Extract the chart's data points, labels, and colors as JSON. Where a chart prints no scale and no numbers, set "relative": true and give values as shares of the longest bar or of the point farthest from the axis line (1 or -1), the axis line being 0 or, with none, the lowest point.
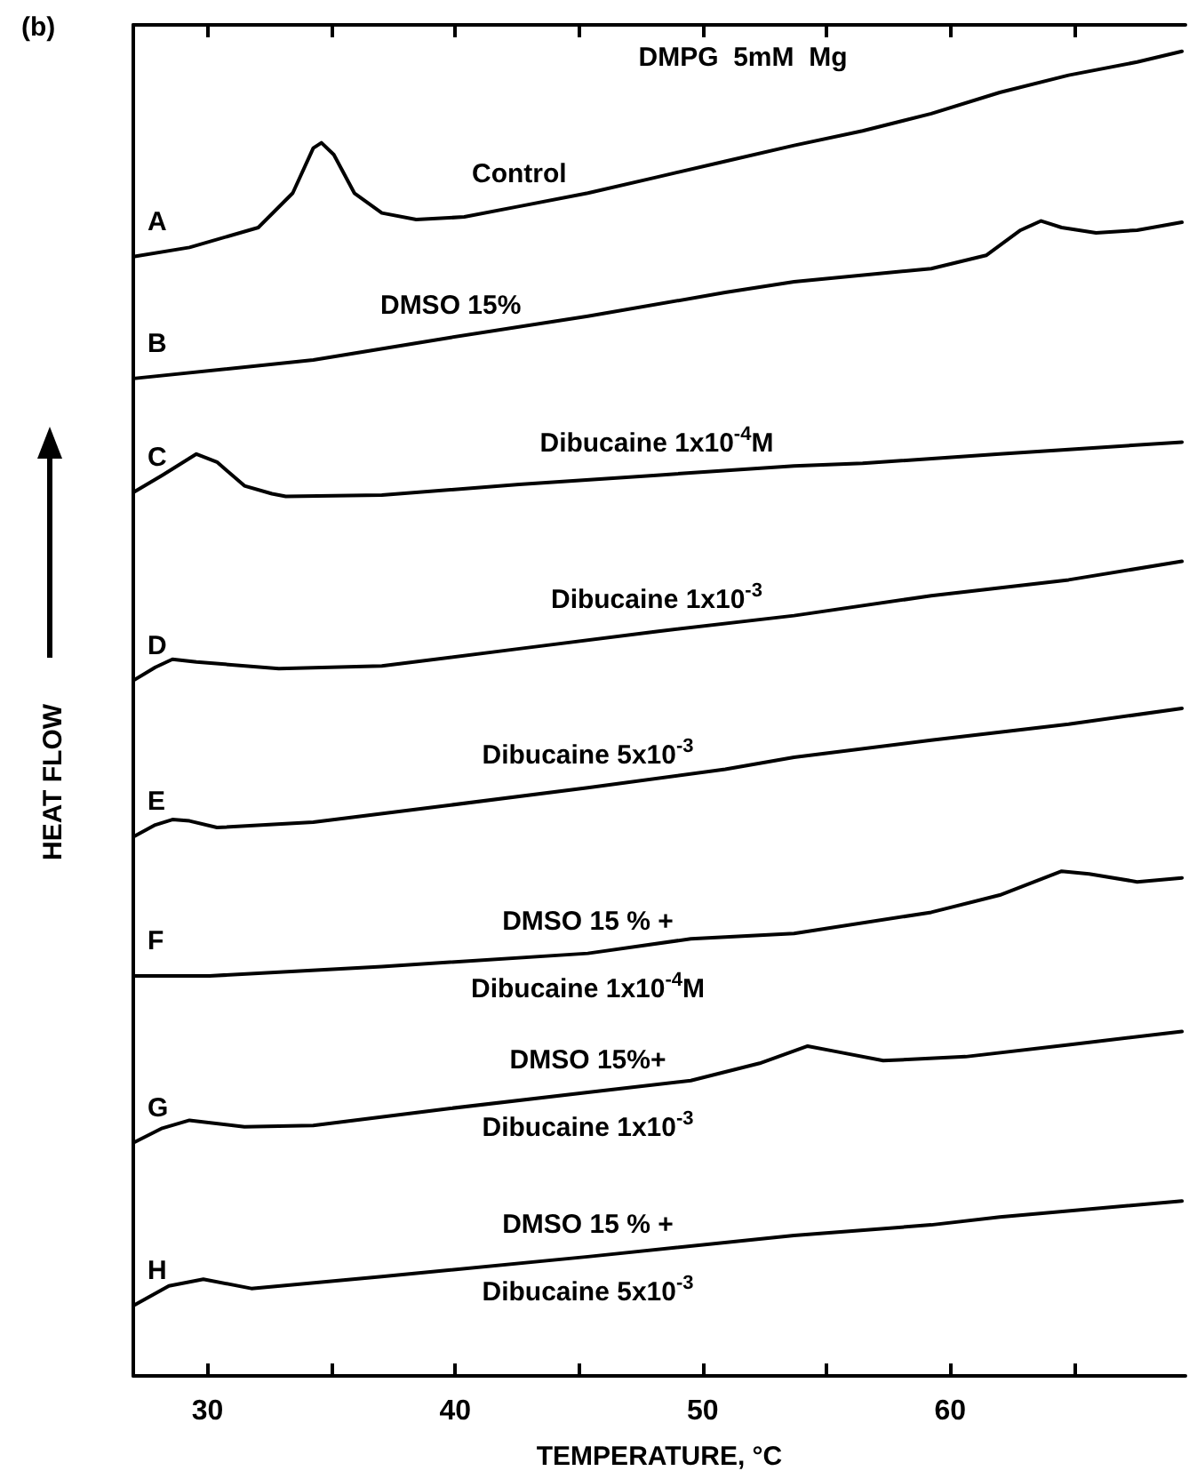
{
  "chart_data": {
    "type": "line",
    "relative": true,
    "title": "DMPG  5mM  Mg",
    "xlabel": "TEMPERATURE, °C",
    "ylabel": "HEAT FLOW",
    "xlim": [
      27,
      69.5
    ],
    "xticks": [
      30,
      {
        "value": 35,
        "label": null
      },
      40,
      {
        "value": 45,
        "label": null
      },
      50,
      {
        "value": 55,
        "label": null
      },
      60,
      {
        "value": 65,
        "label": null
      }
    ],
    "marker": "none",
    "line_style": "solid",
    "grid": false,
    "series": [
      {
        "name": "A",
        "color": "#000000",
        "x": [
          27,
          29.27,
          32.05,
          33.44,
          34.27,
          34.6,
          35.1,
          35.93,
          37.04,
          38.43,
          40.37,
          42.59,
          45.36,
          48.14,
          50.91,
          53.69,
          56.46,
          59.23,
          62.0,
          64.78,
          67.55,
          69.36
        ],
        "values": [
          0.845,
          0.852,
          0.867,
          0.893,
          0.927,
          0.931,
          0.922,
          0.893,
          0.878,
          0.873,
          0.875,
          0.883,
          0.893,
          0.905,
          0.917,
          0.929,
          0.94,
          0.953,
          0.969,
          0.982,
          0.992,
          1.0
        ]
      },
      {
        "name": "B",
        "color": "#000000",
        "x": [
          27,
          34.27,
          39.82,
          45.36,
          50.91,
          53.69,
          59.23,
          61.45,
          62.84,
          63.67,
          64.5,
          65.89,
          67.55,
          69.36
        ],
        "values": [
          0.753,
          0.767,
          0.784,
          0.8,
          0.818,
          0.826,
          0.836,
          0.846,
          0.865,
          0.872,
          0.867,
          0.863,
          0.865,
          0.871
        ]
      },
      {
        "name": "C",
        "color": "#000000",
        "x": [
          27,
          28.17,
          29.55,
          30.38,
          31.49,
          32.6,
          33.16,
          37.04,
          42.59,
          48.14,
          53.69,
          56.46,
          62.0,
          69.36
        ],
        "values": [
          0.667,
          0.68,
          0.696,
          0.69,
          0.672,
          0.666,
          0.664,
          0.665,
          0.673,
          0.68,
          0.687,
          0.689,
          0.696,
          0.705
        ]
      },
      {
        "name": "D",
        "color": "#000000",
        "x": [
          27,
          27.89,
          28.58,
          29.55,
          32.88,
          37.04,
          42.59,
          48.14,
          53.69,
          59.23,
          64.78,
          69.36
        ],
        "values": [
          0.525,
          0.535,
          0.541,
          0.539,
          0.534,
          0.536,
          0.549,
          0.562,
          0.574,
          0.589,
          0.601,
          0.615
        ]
      },
      {
        "name": "E",
        "color": "#000000",
        "x": [
          27,
          27.89,
          28.58,
          29.27,
          30.38,
          34.27,
          39.82,
          45.36,
          50.91,
          53.69,
          59.23,
          64.78,
          69.36
        ],
        "values": [
          0.407,
          0.416,
          0.42,
          0.419,
          0.414,
          0.418,
          0.431,
          0.444,
          0.458,
          0.467,
          0.48,
          0.492,
          0.504
        ]
      },
      {
        "name": "F",
        "color": "#000000",
        "x": [
          27,
          30.08,
          37.04,
          45.36,
          49.52,
          53.69,
          59.23,
          62.0,
          64.5,
          65.61,
          67.55,
          69.36
        ],
        "values": [
          0.302,
          0.302,
          0.309,
          0.319,
          0.33,
          0.334,
          0.35,
          0.363,
          0.381,
          0.379,
          0.373,
          0.376
        ]
      },
      {
        "name": "G",
        "color": "#000000",
        "x": [
          27,
          28.17,
          29.27,
          31.49,
          34.27,
          39.82,
          45.36,
          49.52,
          52.3,
          54.24,
          55.35,
          57.29,
          60.62,
          64.78,
          69.36
        ],
        "values": [
          0.176,
          0.187,
          0.193,
          0.188,
          0.189,
          0.202,
          0.214,
          0.223,
          0.236,
          0.249,
          0.245,
          0.238,
          0.241,
          0.25,
          0.26
        ]
      },
      {
        "name": "H",
        "color": "#000000",
        "x": [
          27,
          28.44,
          29.83,
          31.77,
          37.04,
          45.36,
          53.69,
          59.23,
          62.0,
          69.36
        ],
        "values": [
          0.053,
          0.068,
          0.073,
          0.066,
          0.075,
          0.09,
          0.106,
          0.114,
          0.12,
          0.132
        ]
      }
    ],
    "annotations": [
      "(b)",
      {
        "text": "Control",
        "x": 42.59,
        "y": 0.883
      },
      {
        "text": "DMSO 15%",
        "x": 39.82,
        "y": 0.784
      },
      {
        "text": "Dibucaine 1x10$^{-4}$M",
        "x": 48.14,
        "y": 0.68
      },
      {
        "text": "Dibucaine 1x10$^{-3}$",
        "x": 48.14,
        "y": 0.562
      },
      {
        "text": "Dibucaine 5x10$^{-3}$",
        "x": 45.36,
        "y": 0.444
      },
      {
        "text": "DMSO 15 % +",
        "x": 45.36,
        "y": 0.319
      },
      {
        "text": "Dibucaine 1x10$^{-4}$M",
        "x": 45.36,
        "y": 0.319
      },
      {
        "text": "DMSO 15%+",
        "x": 45.36,
        "y": 0.214
      },
      {
        "text": "Dibucaine 1x10$^{-3}$",
        "x": 45.36,
        "y": 0.214
      },
      {
        "text": "DMSO 15 % +",
        "x": 45.36,
        "y": 0.09
      },
      {
        "text": "Dibucaine 5x10$^{-3}$",
        "x": 45.36,
        "y": 0.09
      }
    ]
  }
}
